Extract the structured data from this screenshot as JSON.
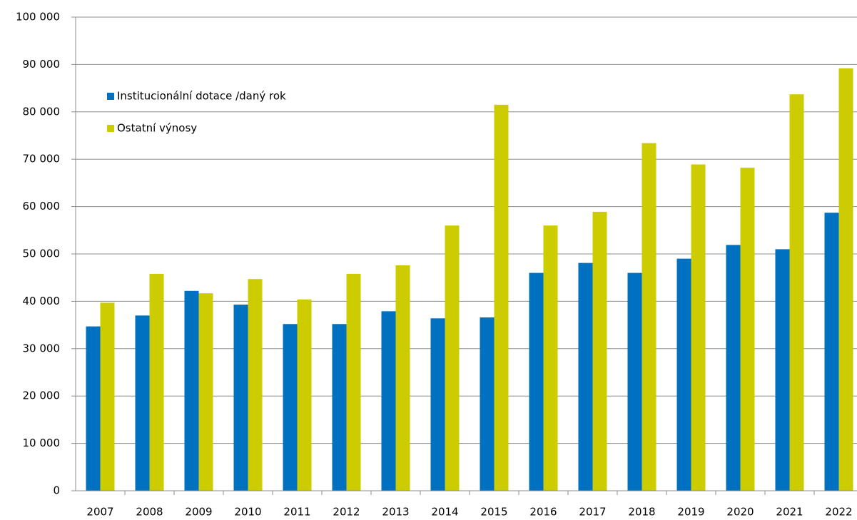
{
  "chart_data": {
    "type": "bar",
    "categories": [
      "2007",
      "2008",
      "2009",
      "2010",
      "2011",
      "2012",
      "2013",
      "2014",
      "2015",
      "2016",
      "2017",
      "2018",
      "2019",
      "2020",
      "2021",
      "2022"
    ],
    "series": [
      {
        "name": "Institucionální dotace /daný rok",
        "color": "#0070c0",
        "values": [
          34700,
          37000,
          42200,
          39300,
          35200,
          35200,
          37900,
          36400,
          36600,
          46000,
          48100,
          46000,
          49000,
          51900,
          51000,
          58700
        ]
      },
      {
        "name": "Ostatní výnosy",
        "color": "#cccc00",
        "values": [
          39700,
          45800,
          41700,
          44700,
          40400,
          45800,
          47600,
          56000,
          81500,
          56000,
          58900,
          73400,
          68900,
          68200,
          83700,
          89200
        ]
      }
    ],
    "ylim": [
      0,
      100000
    ],
    "yticks": [
      0,
      {
        "value": 10000,
        "label": "10 000"
      },
      {
        "value": 20000,
        "label": "20 000"
      },
      {
        "value": 30000,
        "label": "30 000"
      },
      {
        "value": 40000,
        "label": "40 000"
      },
      {
        "value": 50000,
        "label": "50 000"
      },
      {
        "value": 60000,
        "label": "60 000"
      },
      {
        "value": 70000,
        "label": "70 000"
      },
      {
        "value": 80000,
        "label": "80 000"
      },
      {
        "value": 90000,
        "label": "90 000"
      },
      {
        "value": 100000,
        "label": "100 000"
      }
    ],
    "grid": true,
    "legend": "upper left"
  }
}
